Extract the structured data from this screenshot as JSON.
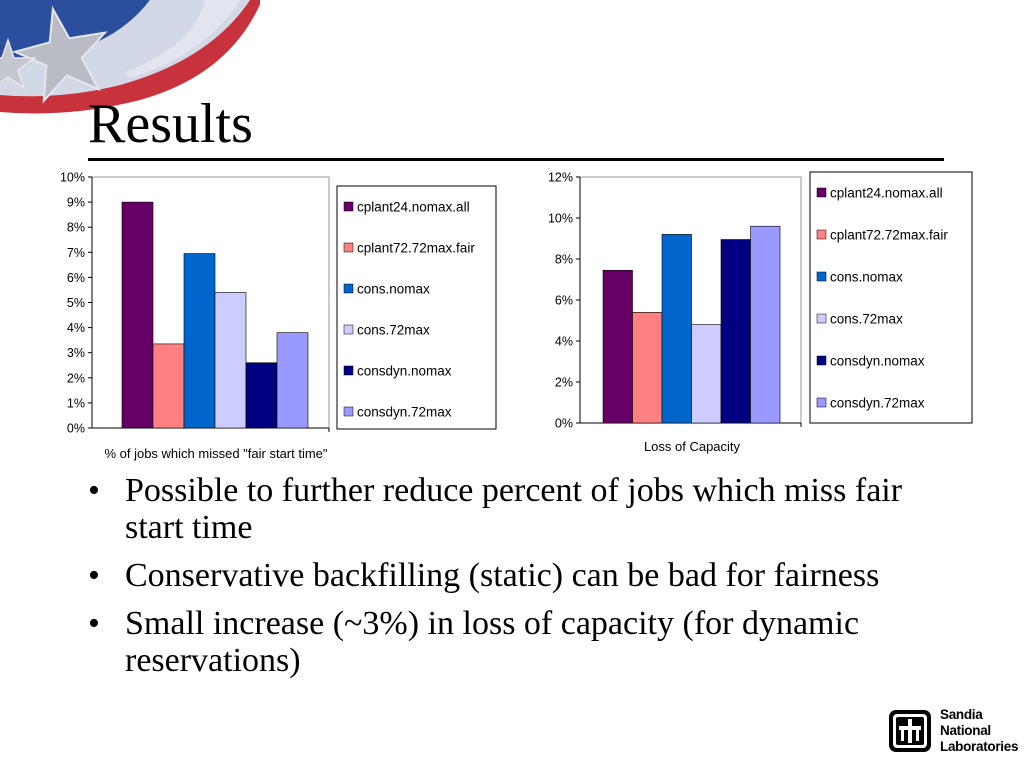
{
  "slide": {
    "title": "Results",
    "bullets": [
      "Possible to further reduce percent of jobs which miss fair start time",
      "Conservative backfilling (static) can be bad for fairness",
      "Small increase (~3%) in loss of capacity (for dynamic reservations)"
    ],
    "logo": {
      "line1": "Sandia",
      "line2": "National",
      "line3": "Laboratories"
    }
  },
  "chart_data": [
    {
      "type": "bar",
      "categories": [
        ""
      ],
      "xlabel": "% of jobs which missed \"fair start time\"",
      "ylabel": "",
      "ylim": [
        0,
        10
      ],
      "yticks": [
        "0%",
        "1%",
        "2%",
        "3%",
        "4%",
        "5%",
        "6%",
        "7%",
        "8%",
        "9%",
        "10%"
      ],
      "legend_position": "right",
      "grid": false,
      "series": [
        {
          "name": "cplant24.nomax.all",
          "values": [
            9.0
          ],
          "color": "#660066"
        },
        {
          "name": "cplant72.72max.fair",
          "values": [
            3.35
          ],
          "color": "#ff8080"
        },
        {
          "name": "cons.nomax",
          "values": [
            6.95
          ],
          "color": "#0066cc"
        },
        {
          "name": "cons.72max",
          "values": [
            5.4
          ],
          "color": "#ccccff"
        },
        {
          "name": "consdyn.nomax",
          "values": [
            2.6
          ],
          "color": "#000080"
        },
        {
          "name": "consdyn.72max",
          "values": [
            3.8
          ],
          "color": "#9999ff"
        }
      ]
    },
    {
      "type": "bar",
      "categories": [
        ""
      ],
      "xlabel": "Loss of Capacity",
      "ylabel": "",
      "ylim": [
        0,
        12
      ],
      "yticks": [
        "0%",
        "2%",
        "4%",
        "6%",
        "8%",
        "10%",
        "12%"
      ],
      "legend_position": "right",
      "grid": false,
      "series": [
        {
          "name": "cplant24.nomax.all",
          "values": [
            7.45
          ],
          "color": "#660066"
        },
        {
          "name": "cplant72.72max.fair",
          "values": [
            5.4
          ],
          "color": "#ff8080"
        },
        {
          "name": "cons.nomax",
          "values": [
            9.2
          ],
          "color": "#0066cc"
        },
        {
          "name": "cons.72max",
          "values": [
            4.8
          ],
          "color": "#ccccff"
        },
        {
          "name": "consdyn.nomax",
          "values": [
            8.95
          ],
          "color": "#000080"
        },
        {
          "name": "consdyn.72max",
          "values": [
            9.6
          ],
          "color": "#9999ff"
        }
      ]
    }
  ]
}
